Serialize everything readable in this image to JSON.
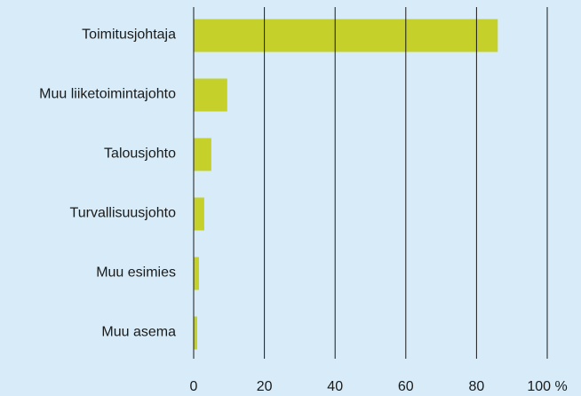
{
  "chart_data": {
    "type": "hbar",
    "categories": [
      "Toimitusjohtaja",
      "Muu liiketoimintajohto",
      "Talousjohto",
      "Turvallisuusjohto",
      "Muu esimies",
      "Muu asema"
    ],
    "values": [
      86,
      9.5,
      5,
      3,
      1.5,
      1
    ],
    "color": "#c5d12a",
    "xlim": [
      0,
      100
    ],
    "xticks": [
      0,
      20,
      40,
      60,
      80,
      {
        "value": 100,
        "label": "100 %"
      }
    ],
    "grid": true
  }
}
